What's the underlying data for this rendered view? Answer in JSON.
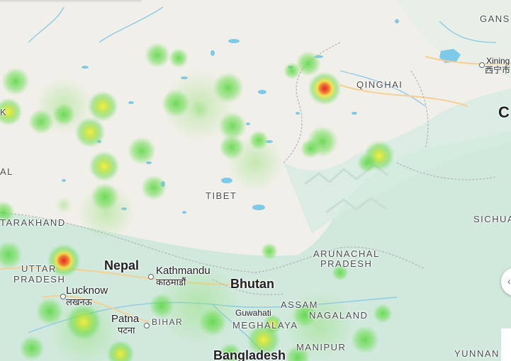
{
  "map": {
    "colors": {
      "land": "#f1efe9",
      "forest": "#cde8dc",
      "water": "#7ec8e8",
      "road": "#f6cf93",
      "border": "#b5b9c0",
      "heat_low": "#5ed84a",
      "heat_mid": "#f2ea3c",
      "heat_high": "#e8402a"
    },
    "labels": {
      "gansu": "GANS",
      "xining": "Xining",
      "xining_native": "西宁市",
      "qinghai": "QINGHAI",
      "ch": "C",
      "tibet": "TIBET",
      "sichuan": "SICHUA",
      "uttarakhand": "TARAKHAND",
      "uttar": "UTTAR",
      "pradesh_up": "PRADESH",
      "nepal": "Nepal",
      "kathmandu": "Kathmandu",
      "kathmandu_native": "काठमाडौं",
      "bhutan": "Bhutan",
      "arunachal": "ARUNACHAL",
      "pradesh_ar": "PRADESH",
      "lucknow": "Lucknow",
      "lucknow_native": "लखनऊ",
      "patna": "Patna",
      "patna_native": "पटना",
      "bihar": "BIHAR",
      "guwahati": "Guwahati",
      "assam": "ASSAM",
      "nagaland": "NAGALAND",
      "meghalaya": "MEGHALAYA",
      "manipur": "MANIPUR",
      "bangladesh": "Bangladesh",
      "yunnan": "YUNNAN",
      "k_fragment": "K",
      "al_fragment": "AL"
    },
    "controls": {
      "side_button_icon": "chevron-left-icon",
      "side_button_glyph": "‹"
    }
  }
}
